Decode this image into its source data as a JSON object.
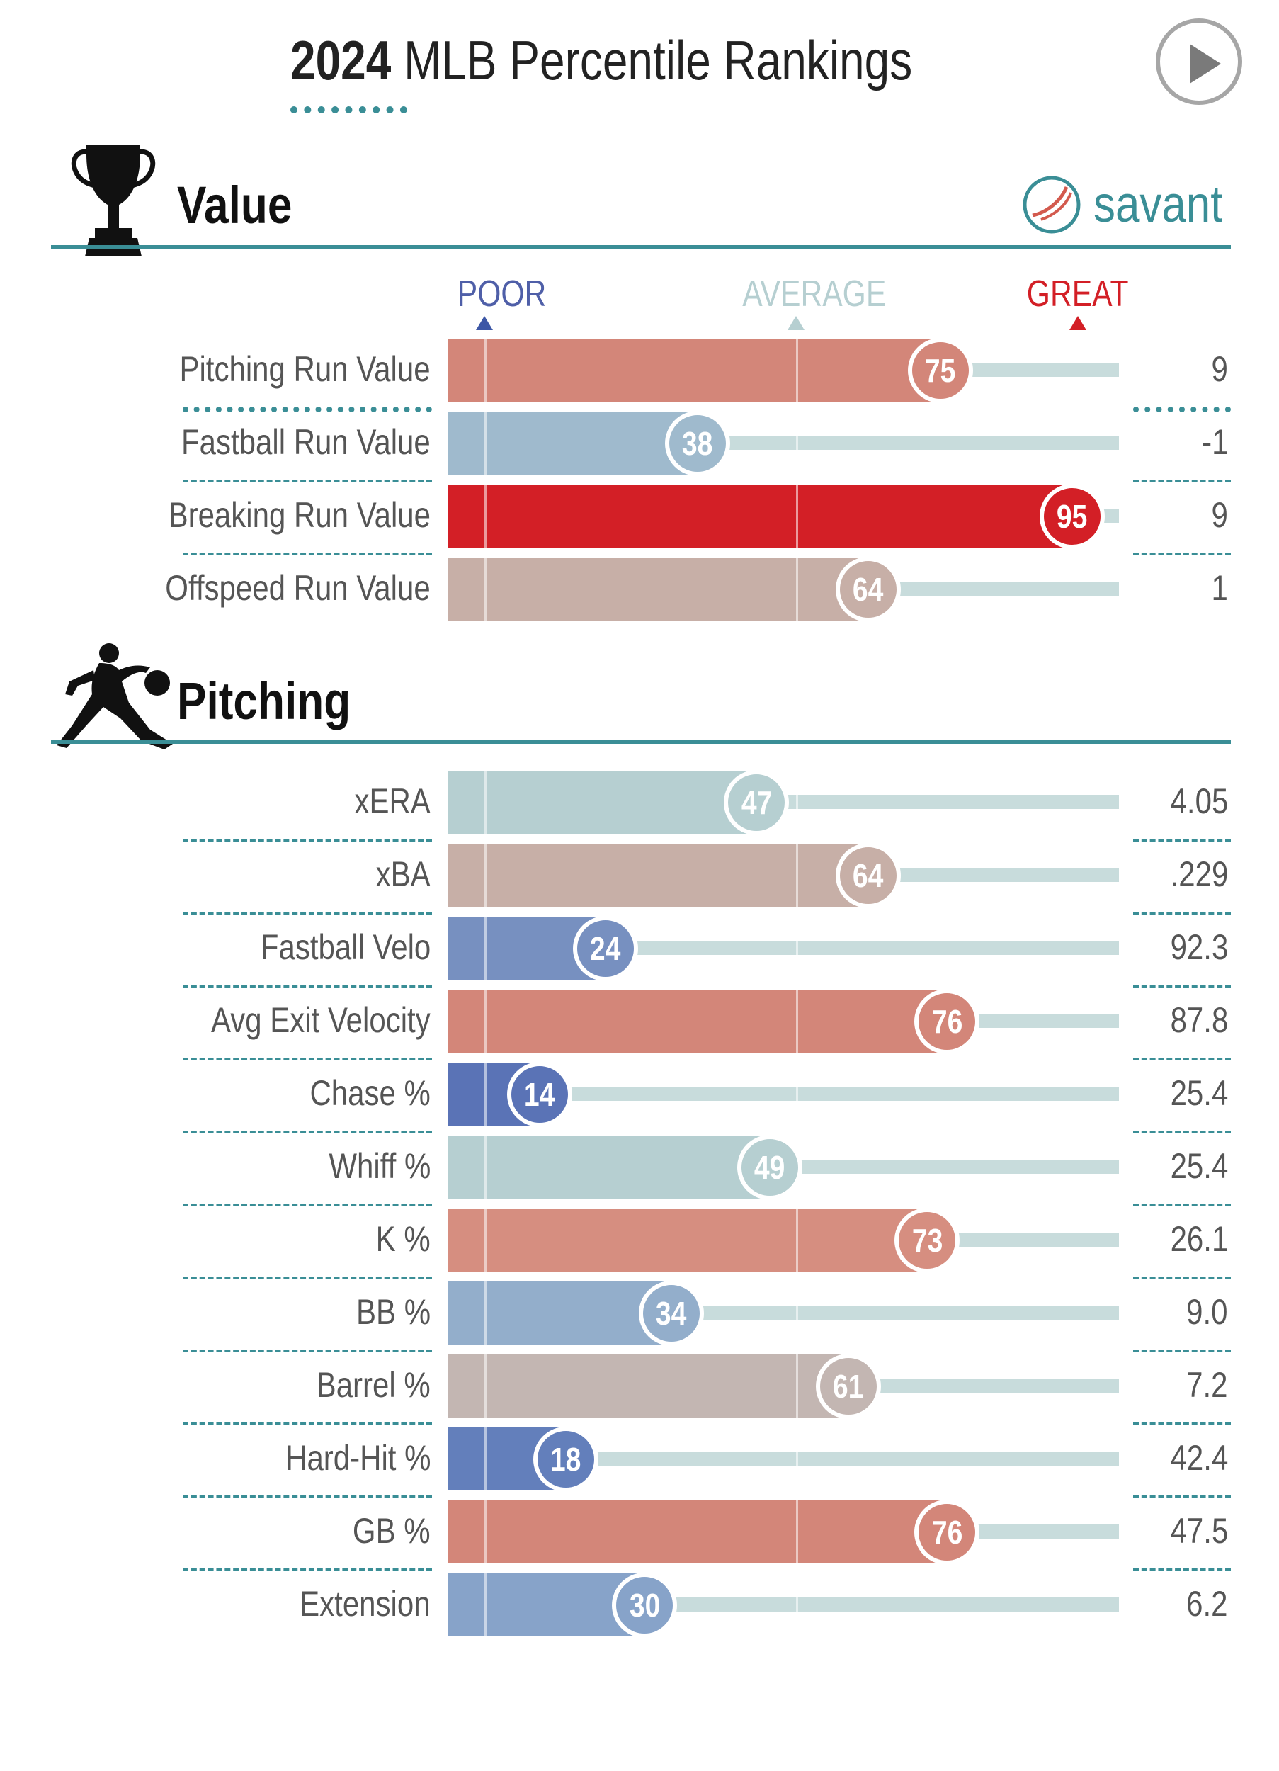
{
  "header": {
    "title_year": "2024",
    "title_rest": "MLB Percentile Rankings"
  },
  "brand": {
    "name": "savant"
  },
  "icons": {
    "play": "play-circle-icon",
    "trophy": "trophy-icon",
    "pitcher": "pitcher-silhouette-icon",
    "logo": "baseball-logo-icon"
  },
  "scale": {
    "poor": "POOR",
    "average": "AVERAGE",
    "great": "GREAT"
  },
  "colors": {
    "poor": "#4f6aae",
    "average": "#b6cfd1",
    "great": "#d31f26",
    "accent": "#3a8e96",
    "track": "#c8dcdc"
  },
  "chart_data": [
    {
      "type": "bar",
      "title": "Value",
      "xlim": [
        0,
        100
      ],
      "categories": [
        "Pitching Run Value",
        "Fastball Run Value",
        "Breaking Run Value",
        "Offspeed Run Value"
      ],
      "percentiles": [
        75,
        38,
        95,
        64
      ],
      "values": [
        "9",
        "-1",
        "9",
        "1"
      ],
      "bar_colors": [
        "#d38679",
        "#9fbacd",
        "#d31f26",
        "#c7afa7"
      ]
    },
    {
      "type": "bar",
      "title": "Pitching",
      "xlim": [
        0,
        100
      ],
      "categories": [
        "xERA",
        "xBA",
        "Fastball Velo",
        "Avg Exit Velocity",
        "Chase %",
        "Whiff %",
        "K %",
        "BB %",
        "Barrel %",
        "Hard-Hit %",
        "GB %",
        "Extension"
      ],
      "percentiles": [
        47,
        64,
        24,
        76,
        14,
        49,
        73,
        34,
        61,
        18,
        76,
        30
      ],
      "values": [
        "4.05",
        ".229",
        "92.3",
        "87.8",
        "25.4",
        "25.4",
        "26.1",
        "9.0",
        "7.2",
        "42.4",
        "47.5",
        "6.2"
      ],
      "bar_colors": [
        "#b6cfd1",
        "#c7afa7",
        "#7790c0",
        "#d38679",
        "#5a73b6",
        "#b6cfd1",
        "#d68e80",
        "#93aecb",
        "#c3b6b2",
        "#637fbb",
        "#d38679",
        "#87a3c9"
      ]
    }
  ]
}
